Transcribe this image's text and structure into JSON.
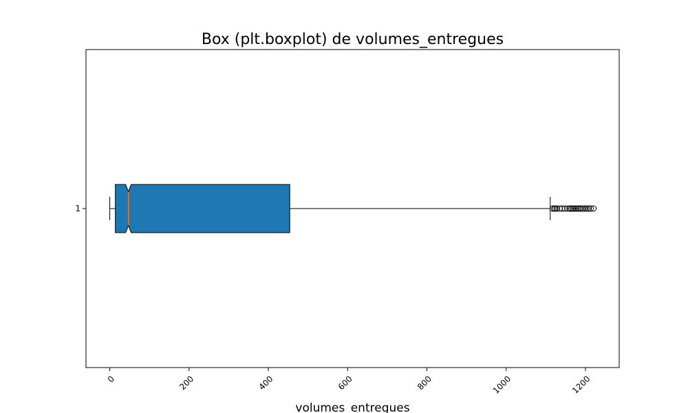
{
  "chart_data": {
    "type": "box",
    "orientation": "horizontal",
    "title": "Box (plt.boxplot) de volumes_entregues",
    "xlabel": "volumes_entregues",
    "ylabel": "",
    "xlim": [
      -60,
      1285
    ],
    "xticks": [
      0,
      200,
      400,
      600,
      800,
      1000,
      1200
    ],
    "xtick_labels": [
      "0",
      "200",
      "400",
      "600",
      "800",
      "1000",
      "1200"
    ],
    "xtick_rotation": 45,
    "categories": [
      "1"
    ],
    "notch": true,
    "series": [
      {
        "whisker_low": 0,
        "q1": 14,
        "median": 47,
        "q3": 454,
        "whisker_high": 1111,
        "notch_low": 40,
        "notch_high": 54,
        "outliers": [
          1117,
          1121,
          1124,
          1128,
          1135,
          1141,
          1148,
          1155,
          1160,
          1164,
          1168,
          1172,
          1176,
          1180,
          1184,
          1188,
          1193,
          1198,
          1203,
          1208,
          1213,
          1220
        ]
      }
    ],
    "colors": {
      "box_fill": "#1f77b4",
      "median_line": "#ff7f0e",
      "lines": "#000000"
    },
    "grid": false,
    "legend": "none"
  }
}
